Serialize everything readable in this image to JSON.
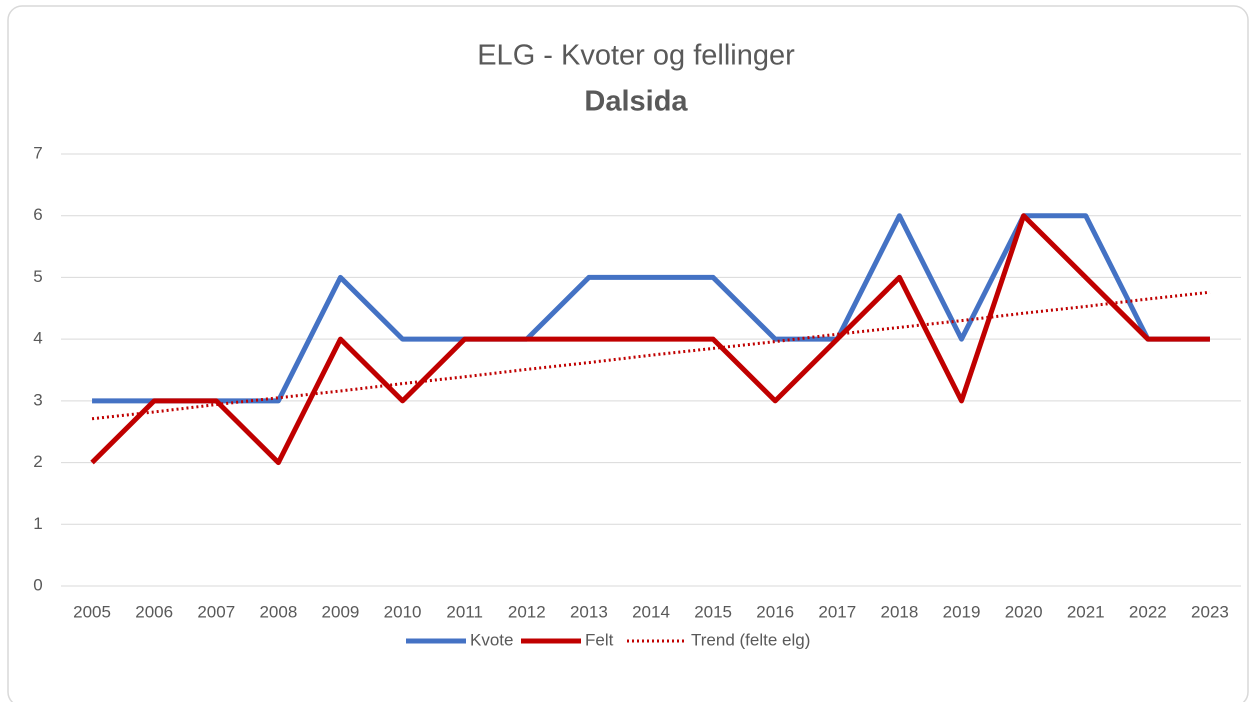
{
  "chart_data": {
    "type": "line",
    "title": "ELG - Kvoter og fellinger",
    "subtitle": "Dalsida",
    "categories": [
      "2005",
      "2006",
      "2007",
      "2008",
      "2009",
      "2010",
      "2011",
      "2012",
      "2013",
      "2014",
      "2015",
      "2016",
      "2017",
      "2018",
      "2019",
      "2020",
      "2021",
      "2022",
      "2023"
    ],
    "series": [
      {
        "name": "Kvote",
        "color": "#4472c4",
        "style": "solid",
        "values": [
          3,
          3,
          3,
          3,
          5,
          4,
          4,
          4,
          5,
          5,
          5,
          4,
          4,
          6,
          4,
          6,
          6,
          4,
          4
        ]
      },
      {
        "name": "Felt",
        "color": "#c00000",
        "style": "solid",
        "values": [
          2,
          3,
          3,
          2,
          4,
          3,
          4,
          4,
          4,
          4,
          4,
          3,
          4,
          5,
          3,
          6,
          5,
          4,
          4
        ]
      },
      {
        "name": "Trend (felte elg)",
        "color": "#c00000",
        "style": "dotted",
        "values": [
          2.71,
          2.82,
          2.94,
          3.05,
          3.16,
          3.28,
          3.39,
          3.51,
          3.62,
          3.74,
          3.85,
          3.96,
          4.08,
          4.19,
          4.3,
          4.42,
          4.53,
          4.65,
          4.76
        ]
      }
    ],
    "ylim": [
      0,
      7
    ],
    "yticks": [
      0,
      1,
      2,
      3,
      4,
      5,
      6,
      7
    ],
    "grid": true,
    "legend": "bottom"
  }
}
